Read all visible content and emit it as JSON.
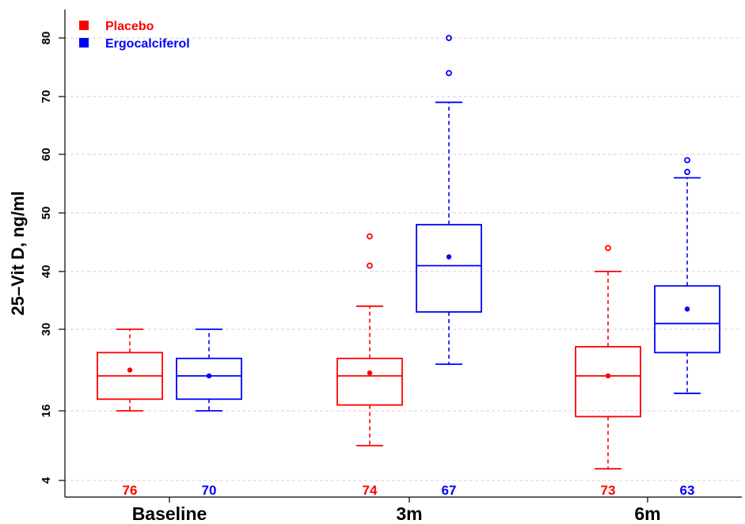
{
  "chart_data": {
    "type": "box",
    "ylabel": "25–Vit D, ng/ml",
    "y_ticks": [
      4,
      16,
      30,
      40,
      50,
      60,
      70,
      80
    ],
    "grid": "horizontal dashed",
    "legend_position": "top-left",
    "categories": [
      "Baseline",
      "3m",
      "6m"
    ],
    "series": [
      {
        "name": "Placebo",
        "color": "#ff0000",
        "counts": [
          "76",
          "74",
          "73"
        ],
        "boxes": [
          {
            "whisker_low": 16,
            "q1": 18,
            "median": 22,
            "q3": 26,
            "whisker_high": 30,
            "mean": 23,
            "outliers": []
          },
          {
            "whisker_low": 10,
            "q1": 17,
            "median": 22,
            "q3": 25,
            "whisker_high": 34,
            "mean": 22.5,
            "outliers": [
              41,
              46
            ]
          },
          {
            "whisker_low": 6,
            "q1": 15,
            "median": 22,
            "q3": 27,
            "whisker_high": 40,
            "mean": 22,
            "outliers": [
              44
            ]
          }
        ]
      },
      {
        "name": "Ergocalciferol",
        "color": "#0000ff",
        "counts": [
          "70",
          "67",
          "63"
        ],
        "boxes": [
          {
            "whisker_low": 16,
            "q1": 18,
            "median": 22,
            "q3": 25,
            "whisker_high": 30,
            "mean": 22,
            "outliers": []
          },
          {
            "whisker_low": 24,
            "q1": 33,
            "median": 41,
            "q3": 48,
            "whisker_high": 69,
            "mean": 42.5,
            "outliers": [
              74,
              80
            ]
          },
          {
            "whisker_low": 19,
            "q1": 26,
            "median": 31,
            "q3": 37.5,
            "whisker_high": 56,
            "mean": 33.5,
            "outliers": [
              57,
              59
            ]
          }
        ]
      }
    ]
  }
}
